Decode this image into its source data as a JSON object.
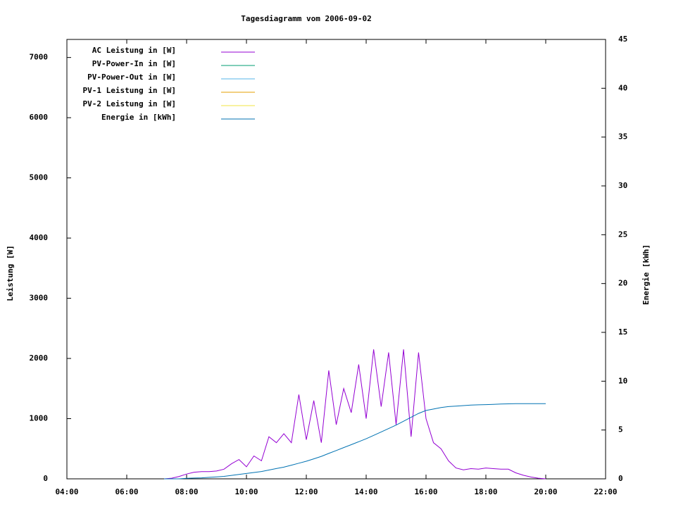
{
  "chart_data": {
    "type": "line",
    "title": "Tagesdiagramm vom 2006-09-02",
    "y_label": "Leistung [W]",
    "y2_label": "Energie [kWh]",
    "x": [
      7.25,
      7.5,
      7.75,
      8,
      8.25,
      8.5,
      8.75,
      9,
      9.25,
      9.5,
      9.75,
      10,
      10.25,
      10.5,
      10.75,
      11,
      11.25,
      11.5,
      11.75,
      12,
      12.25,
      12.5,
      12.75,
      13,
      13.25,
      13.5,
      13.75,
      14,
      14.25,
      14.5,
      14.75,
      15,
      15.25,
      15.5,
      15.75,
      16,
      16.25,
      16.5,
      16.75,
      17,
      17.25,
      17.5,
      17.75,
      18,
      18.25,
      18.5,
      18.75,
      19,
      19.25,
      19.5,
      19.75,
      20
    ],
    "series": [
      {
        "name": "AC Leistung in [W]",
        "color": "#9400d3",
        "values": [
          0,
          10,
          40,
          80,
          110,
          120,
          120,
          130,
          160,
          250,
          320,
          200,
          380,
          300,
          700,
          600,
          750,
          600,
          1400,
          650,
          1300,
          600,
          1800,
          900,
          1500,
          1100,
          1900,
          1000,
          2150,
          1200,
          2100,
          900,
          2150,
          700,
          2100,
          1000,
          600,
          500,
          300,
          180,
          150,
          170,
          160,
          180,
          170,
          160,
          160,
          100,
          60,
          30,
          10,
          0
        ]
      },
      {
        "name": "PV-Power-In in [W]",
        "color": "#009e73"
      },
      {
        "name": "PV-Power-Out in [W]",
        "color": "#56b4e9"
      },
      {
        "name": "PV-1 Leistung in [W]",
        "color": "#e69f00"
      },
      {
        "name": "PV-2 Leistung in [W]",
        "color": "#f0e442"
      },
      {
        "name": "Energie in [kWh]",
        "color": "#0072b2",
        "axis": "y2",
        "values": [
          0,
          0,
          0,
          0.05,
          0.08,
          0.1,
          0.15,
          0.2,
          0.25,
          0.35,
          0.45,
          0.55,
          0.65,
          0.75,
          0.9,
          1.05,
          1.2,
          1.4,
          1.6,
          1.8,
          2.05,
          2.3,
          2.6,
          2.9,
          3.2,
          3.5,
          3.8,
          4.1,
          4.45,
          4.8,
          5.15,
          5.5,
          5.9,
          6.3,
          6.7,
          7.0,
          7.15,
          7.3,
          7.4,
          7.45,
          7.5,
          7.55,
          7.58,
          7.6,
          7.63,
          7.66,
          7.68,
          7.7,
          7.7,
          7.7,
          7.7,
          7.7
        ]
      }
    ],
    "xlim": [
      4,
      22
    ],
    "xticks": [
      {
        "value": 4,
        "label": "04:00"
      },
      {
        "value": 6,
        "label": "06:00"
      },
      {
        "value": 8,
        "label": "08:00"
      },
      {
        "value": 10,
        "label": "10:00"
      },
      {
        "value": 12,
        "label": "12:00"
      },
      {
        "value": 14,
        "label": "14:00"
      },
      {
        "value": 16,
        "label": "16:00"
      },
      {
        "value": 18,
        "label": "18:00"
      },
      {
        "value": 20,
        "label": "20:00"
      },
      {
        "value": 22,
        "label": "22:00"
      }
    ],
    "ylim": [
      0,
      7300
    ],
    "yticks": [
      0,
      1000,
      2000,
      3000,
      4000,
      5000,
      6000,
      7000
    ],
    "y2lim": [
      0,
      45
    ],
    "y2ticks": [
      0,
      5,
      10,
      15,
      20,
      25,
      30,
      35,
      40,
      45
    ],
    "legend": "top-left"
  }
}
